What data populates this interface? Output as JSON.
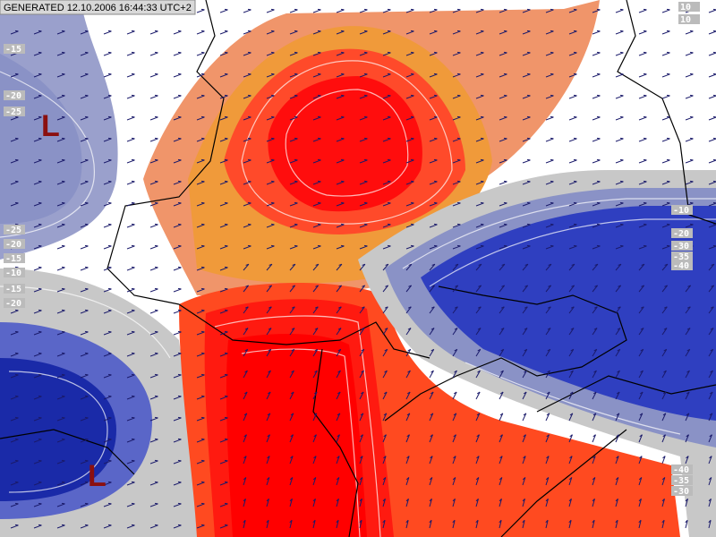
{
  "header": {
    "generated": "GENERATED 12.10.2006 16:44:33 UTC+2"
  },
  "lows": [
    "L",
    "L"
  ],
  "contour_labels": [
    "-15",
    "-20",
    "-25",
    "-25",
    "-20",
    "-15",
    "-10",
    "-15",
    "-20",
    "-10",
    "-20",
    "-30",
    "-35",
    "-40",
    "-40",
    "-35",
    "-30",
    "10",
    "10"
  ]
}
